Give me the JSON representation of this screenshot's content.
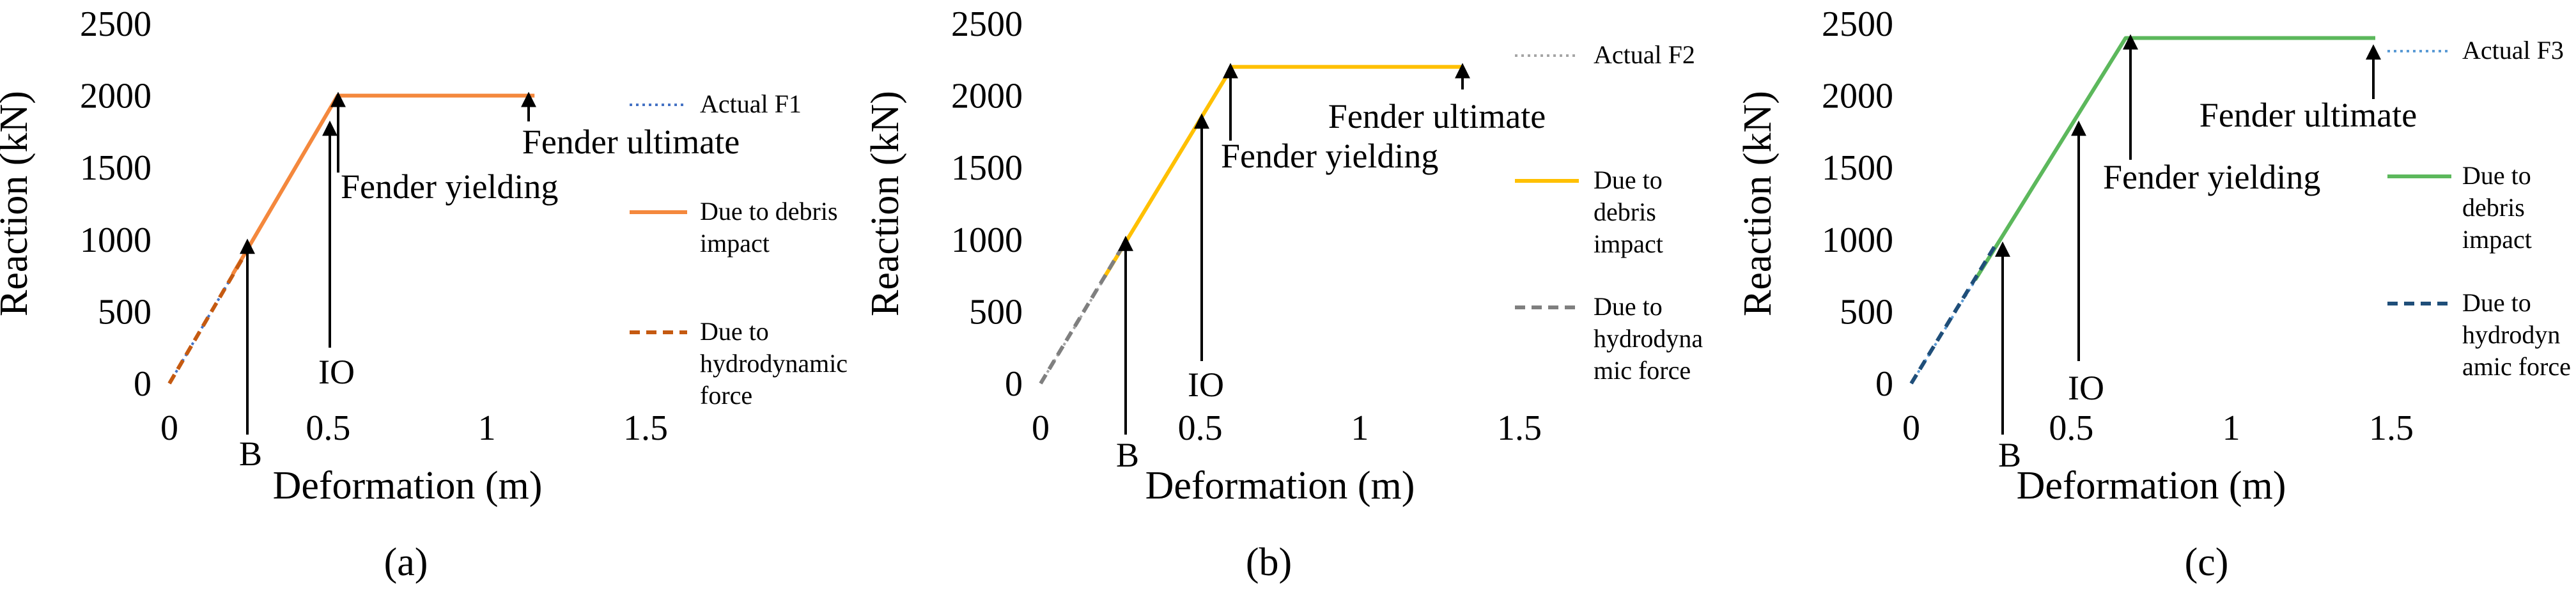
{
  "chart_data": [
    {
      "type": "line",
      "caption": "(a)",
      "xlabel": "Deformation (m)",
      "ylabel": "Reaction (kN)",
      "xlim": [
        0,
        1.5
      ],
      "ylim": [
        0,
        2500
      ],
      "xticks": [
        "0",
        "0.5",
        "1",
        "1.5"
      ],
      "yticks": [
        "0",
        "500",
        "1000",
        "1500",
        "2000",
        "2500"
      ],
      "grid": false,
      "legend_position": "right",
      "series": [
        {
          "name": "Actual F1",
          "color": "#4472c4",
          "style": "dotted",
          "x": [
            0,
            0.53
          ],
          "y": [
            0,
            2000
          ]
        },
        {
          "name": "Due to debris impact",
          "color": "#f4883d",
          "style": "solid",
          "x": [
            0.2,
            0.53,
            1.15
          ],
          "y": [
            760,
            2000,
            2000
          ]
        },
        {
          "name": "Due to hydrodynamic force",
          "color": "#c55a11",
          "style": "dashed",
          "x": [
            0,
            0.26
          ],
          "y": [
            0,
            980
          ]
        }
      ],
      "annotations": [
        {
          "label": "B",
          "x": 0.25,
          "y": 980
        },
        {
          "label": "IO",
          "x": 0.5,
          "y": 1800
        },
        {
          "label": "Fender yielding",
          "x": 0.53,
          "y": 2000
        },
        {
          "label": "Fender ultimate",
          "x": 1.12,
          "y": 2000
        }
      ]
    },
    {
      "type": "line",
      "caption": "(b)",
      "xlabel": "Deformation (m)",
      "ylabel": "Reaction (kN)",
      "xlim": [
        0,
        1.5
      ],
      "ylim": [
        0,
        2500
      ],
      "xticks": [
        "0",
        "0.5",
        "1",
        "1.5"
      ],
      "yticks": [
        "0",
        "500",
        "1000",
        "1500",
        "2000",
        "2500"
      ],
      "grid": false,
      "legend_position": "right",
      "series": [
        {
          "name": "Actual F2",
          "color": "#a5a5a5",
          "style": "dotted",
          "x": [
            0,
            0.6
          ],
          "y": [
            0,
            2200
          ]
        },
        {
          "name": "Due to debris impact",
          "color": "#ffc000",
          "style": "solid",
          "x": [
            0.2,
            0.6,
            1.32
          ],
          "y": [
            740,
            2200,
            2200
          ]
        },
        {
          "name": "Due to hydrodyna mic force",
          "color": "#7f7f7f",
          "style": "dashed",
          "x": [
            0,
            0.27
          ],
          "y": [
            0,
            1000
          ]
        }
      ],
      "annotations": [
        {
          "label": "B",
          "x": 0.27,
          "y": 1000
        },
        {
          "label": "IO",
          "x": 0.5,
          "y": 1850
        },
        {
          "label": "Fender yielding",
          "x": 0.6,
          "y": 2200
        },
        {
          "label": "Fender ultimate",
          "x": 1.3,
          "y": 2200
        }
      ]
    },
    {
      "type": "line",
      "caption": "(c)",
      "xlabel": "Deformation (m)",
      "ylabel": "Reaction (kN)",
      "xlim": [
        0,
        1.5
      ],
      "ylim": [
        0,
        2500
      ],
      "xticks": [
        "0",
        "0.5",
        "1",
        "1.5"
      ],
      "yticks": [
        "0",
        "500",
        "1000",
        "1500",
        "2000",
        "2500"
      ],
      "grid": false,
      "legend_position": "right",
      "series": [
        {
          "name": "Actual F3",
          "color": "#5b9bd5",
          "style": "dotted",
          "x": [
            0,
            0.67
          ],
          "y": [
            0,
            2400
          ]
        },
        {
          "name": "Due to debris impact",
          "color": "#5cb85c",
          "style": "solid",
          "x": [
            0.2,
            0.67,
            1.45
          ],
          "y": [
            720,
            2400,
            2400
          ]
        },
        {
          "name": "Due to hydrodyn amic force",
          "color": "#1f4e79",
          "style": "dashed",
          "x": [
            0,
            0.26
          ],
          "y": [
            0,
            950
          ]
        }
      ],
      "annotations": [
        {
          "label": "B",
          "x": 0.27,
          "y": 960
        },
        {
          "label": "IO",
          "x": 0.5,
          "y": 1800
        },
        {
          "label": "Fender yielding",
          "x": 0.68,
          "y": 2400
        },
        {
          "label": "Fender ultimate",
          "x": 1.43,
          "y": 2330
        }
      ]
    }
  ]
}
